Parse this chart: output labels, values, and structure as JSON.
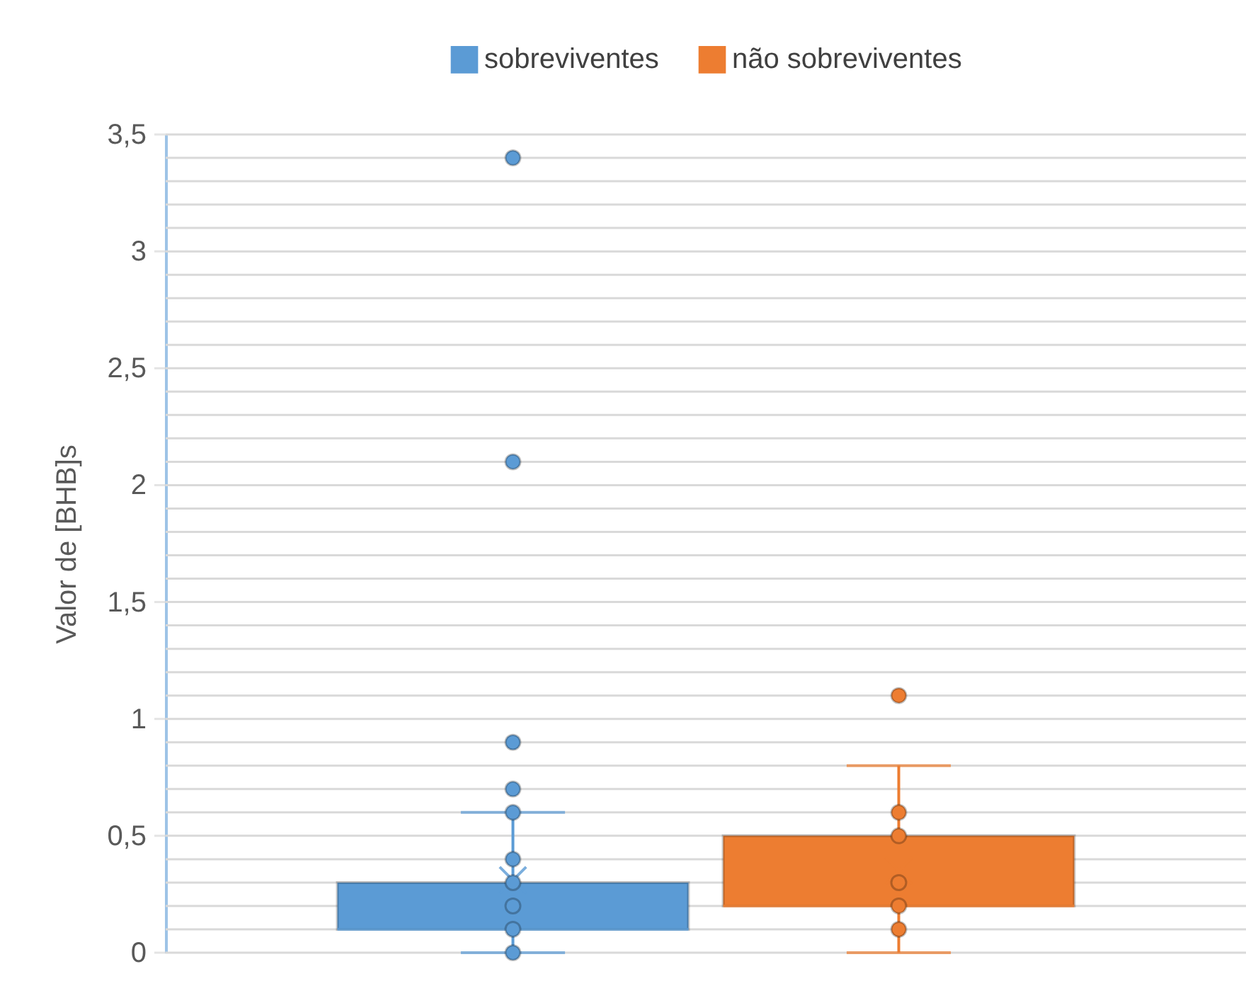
{
  "chart_data": {
    "type": "box",
    "categories": [
      null
    ],
    "ylabel": "Valor de [BHB]s",
    "legend": "top",
    "grid": "y",
    "marker": "circle",
    "ylim": [
      0,
      3.5
    ],
    "yticks": [
      {
        "value": 0,
        "label": "0"
      },
      {
        "value": 0.1,
        "label": null
      },
      {
        "value": 0.2,
        "label": null
      },
      {
        "value": 0.3,
        "label": null
      },
      {
        "value": 0.4,
        "label": null
      },
      {
        "value": 0.5,
        "label": "0,5"
      },
      {
        "value": 0.6,
        "label": null
      },
      {
        "value": 0.7,
        "label": null
      },
      {
        "value": 0.8,
        "label": null
      },
      {
        "value": 0.9,
        "label": null
      },
      {
        "value": 1,
        "label": "1"
      },
      {
        "value": 1.1,
        "label": null
      },
      {
        "value": 1.2,
        "label": null
      },
      {
        "value": 1.3,
        "label": null
      },
      {
        "value": 1.4,
        "label": null
      },
      {
        "value": 1.5,
        "label": "1,5"
      },
      {
        "value": 1.6,
        "label": null
      },
      {
        "value": 1.7,
        "label": null
      },
      {
        "value": 1.8,
        "label": null
      },
      {
        "value": 1.9,
        "label": null
      },
      {
        "value": 2,
        "label": "2"
      },
      {
        "value": 2.1,
        "label": null
      },
      {
        "value": 2.2,
        "label": null
      },
      {
        "value": 2.3,
        "label": null
      },
      {
        "value": 2.4,
        "label": null
      },
      {
        "value": 2.5,
        "label": "2,5"
      },
      {
        "value": 2.6,
        "label": null
      },
      {
        "value": 2.7,
        "label": null
      },
      {
        "value": 2.8,
        "label": null
      },
      {
        "value": 2.9,
        "label": null
      },
      {
        "value": 3,
        "label": "3"
      },
      {
        "value": 3.1,
        "label": null
      },
      {
        "value": 3.2,
        "label": null
      },
      {
        "value": 3.3,
        "label": null
      },
      {
        "value": 3.4,
        "label": null
      },
      {
        "value": 3.5,
        "label": "3,5"
      }
    ],
    "series": [
      {
        "name": "sobreviventes",
        "color": "#5b9bd5",
        "boxes": [
          {
            "low": 0,
            "q1": 0.1,
            "median": 0.1,
            "q3": 0.3,
            "high": 0.6,
            "mean": 0.31,
            "outliers": [
              0,
              0.1,
              0.2,
              0.3,
              0.4,
              0.6,
              0.7,
              0.9,
              2.1,
              3.4
            ]
          }
        ]
      },
      {
        "name": "não sobreviventes",
        "color": "#ed7d31",
        "boxes": [
          {
            "low": 0,
            "q1": 0.2,
            "median": 0.2,
            "q3": 0.5,
            "high": 0.8,
            "mean": 0.35,
            "outliers": [
              0.1,
              0.2,
              0.3,
              0.5,
              0.6,
              1.1
            ]
          }
        ]
      }
    ]
  }
}
